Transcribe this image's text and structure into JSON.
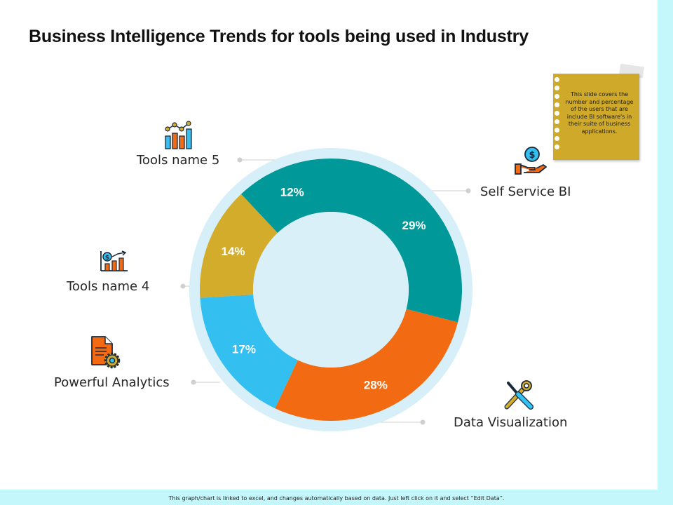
{
  "title": "Business Intelligence Trends for tools being used in Industry",
  "note": {
    "text": "This slide covers the number and percentage of the users that are include BI software's in their suite of business applications."
  },
  "footer": {
    "text": "This graph/chart is linked to excel, and changes automatically based on data. Just left click on it and select “Edit Data”."
  },
  "colors": {
    "teal": "#009898",
    "orange": "#f26b12",
    "blue": "#33bff0",
    "gold": "#d4ac2b",
    "ring": "#d7eff8",
    "center": "#d9f0f8"
  },
  "chart_data": {
    "type": "pie",
    "variant": "donut",
    "categories": [
      "Self Service BI",
      "Data Visualization",
      "Powerful Analytics",
      "Tools name 4",
      "Tools name 5"
    ],
    "values": [
      29,
      28,
      17,
      14,
      12
    ],
    "data_labels": [
      "29%",
      "28%",
      "17%",
      "14%",
      "12%"
    ],
    "slice_colors": [
      "#009898",
      "#f26b12",
      "#33bff0",
      "#d4ac2b",
      "#009898"
    ],
    "icons": [
      "dollar-hand-icon",
      "wrench-screwdriver-icon",
      "document-gear-icon",
      "dollar-bar-chart-icon",
      "trend-bar-chart-icon"
    ]
  }
}
